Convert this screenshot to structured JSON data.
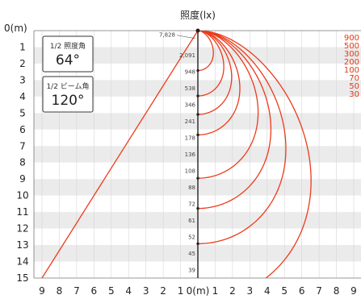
{
  "chart_data": {
    "type": "line",
    "title": "照度(lx)",
    "y_axis_label": "0(m)",
    "x_axis_label": "0(m)",
    "x_ticks_left": [
      "9",
      "8",
      "7",
      "6",
      "5",
      "4",
      "3",
      "2",
      "1"
    ],
    "x_ticks_right": [
      "1",
      "2",
      "3",
      "4",
      "5",
      "6",
      "7",
      "8",
      "9"
    ],
    "y_ticks": [
      "1",
      "2",
      "3",
      "4",
      "5",
      "6",
      "7",
      "8",
      "9",
      "10",
      "11",
      "12",
      "13",
      "14",
      "15"
    ],
    "xlim": [
      -9,
      9
    ],
    "ylim": [
      0,
      15
    ],
    "center_illuminance": [
      {
        "distance": 0.5,
        "value": "7,828"
      },
      {
        "distance": 1.5,
        "value": "2,091"
      },
      {
        "distance": 2.5,
        "value": "948"
      },
      {
        "distance": 3.5,
        "value": "538"
      },
      {
        "distance": 4.5,
        "value": "346"
      },
      {
        "distance": 5.5,
        "value": "241"
      },
      {
        "distance": 6.5,
        "value": "178"
      },
      {
        "distance": 7.5,
        "value": "136"
      },
      {
        "distance": 8.5,
        "value": "108"
      },
      {
        "distance": 9.5,
        "value": "88"
      },
      {
        "distance": 10.5,
        "value": "72"
      },
      {
        "distance": 11.5,
        "value": "61"
      },
      {
        "distance": 12.5,
        "value": "52"
      },
      {
        "distance": 13.5,
        "value": "45"
      },
      {
        "distance": 14.5,
        "value": "39"
      }
    ],
    "isolux_levels": [
      "900",
      "500",
      "300",
      "200",
      "100",
      "70",
      "50",
      "30"
    ],
    "isolux_curves": [
      {
        "level": 900,
        "depth": 2.42,
        "width": 0.85
      },
      {
        "level": 500,
        "depth": 3.96,
        "width": 1.42
      },
      {
        "level": 300,
        "depth": 5.08,
        "width": 1.85
      },
      {
        "level": 200,
        "depth": 6.32,
        "width": 2.3
      },
      {
        "level": 100,
        "depth": 8.95,
        "width": 3.3
      },
      {
        "level": 70,
        "depth": 10.78,
        "width": 4.0
      },
      {
        "level": 50,
        "depth": 12.92,
        "width": 4.82
      },
      {
        "level": 30,
        "depth": 16.4,
        "width": 6.2
      }
    ],
    "half_illuminance_angle": {
      "label": "1/2 照度角",
      "value": "64°"
    },
    "half_beam_angle": {
      "label": "1/2 ビーム角",
      "value": "120°"
    },
    "beam_line_endpoint": {
      "x": -9,
      "y": 15
    },
    "colors": {
      "curve": "#ee3a1a",
      "band": "#ebebeb",
      "center": "#222222",
      "level_text": "#e03a18"
    }
  }
}
